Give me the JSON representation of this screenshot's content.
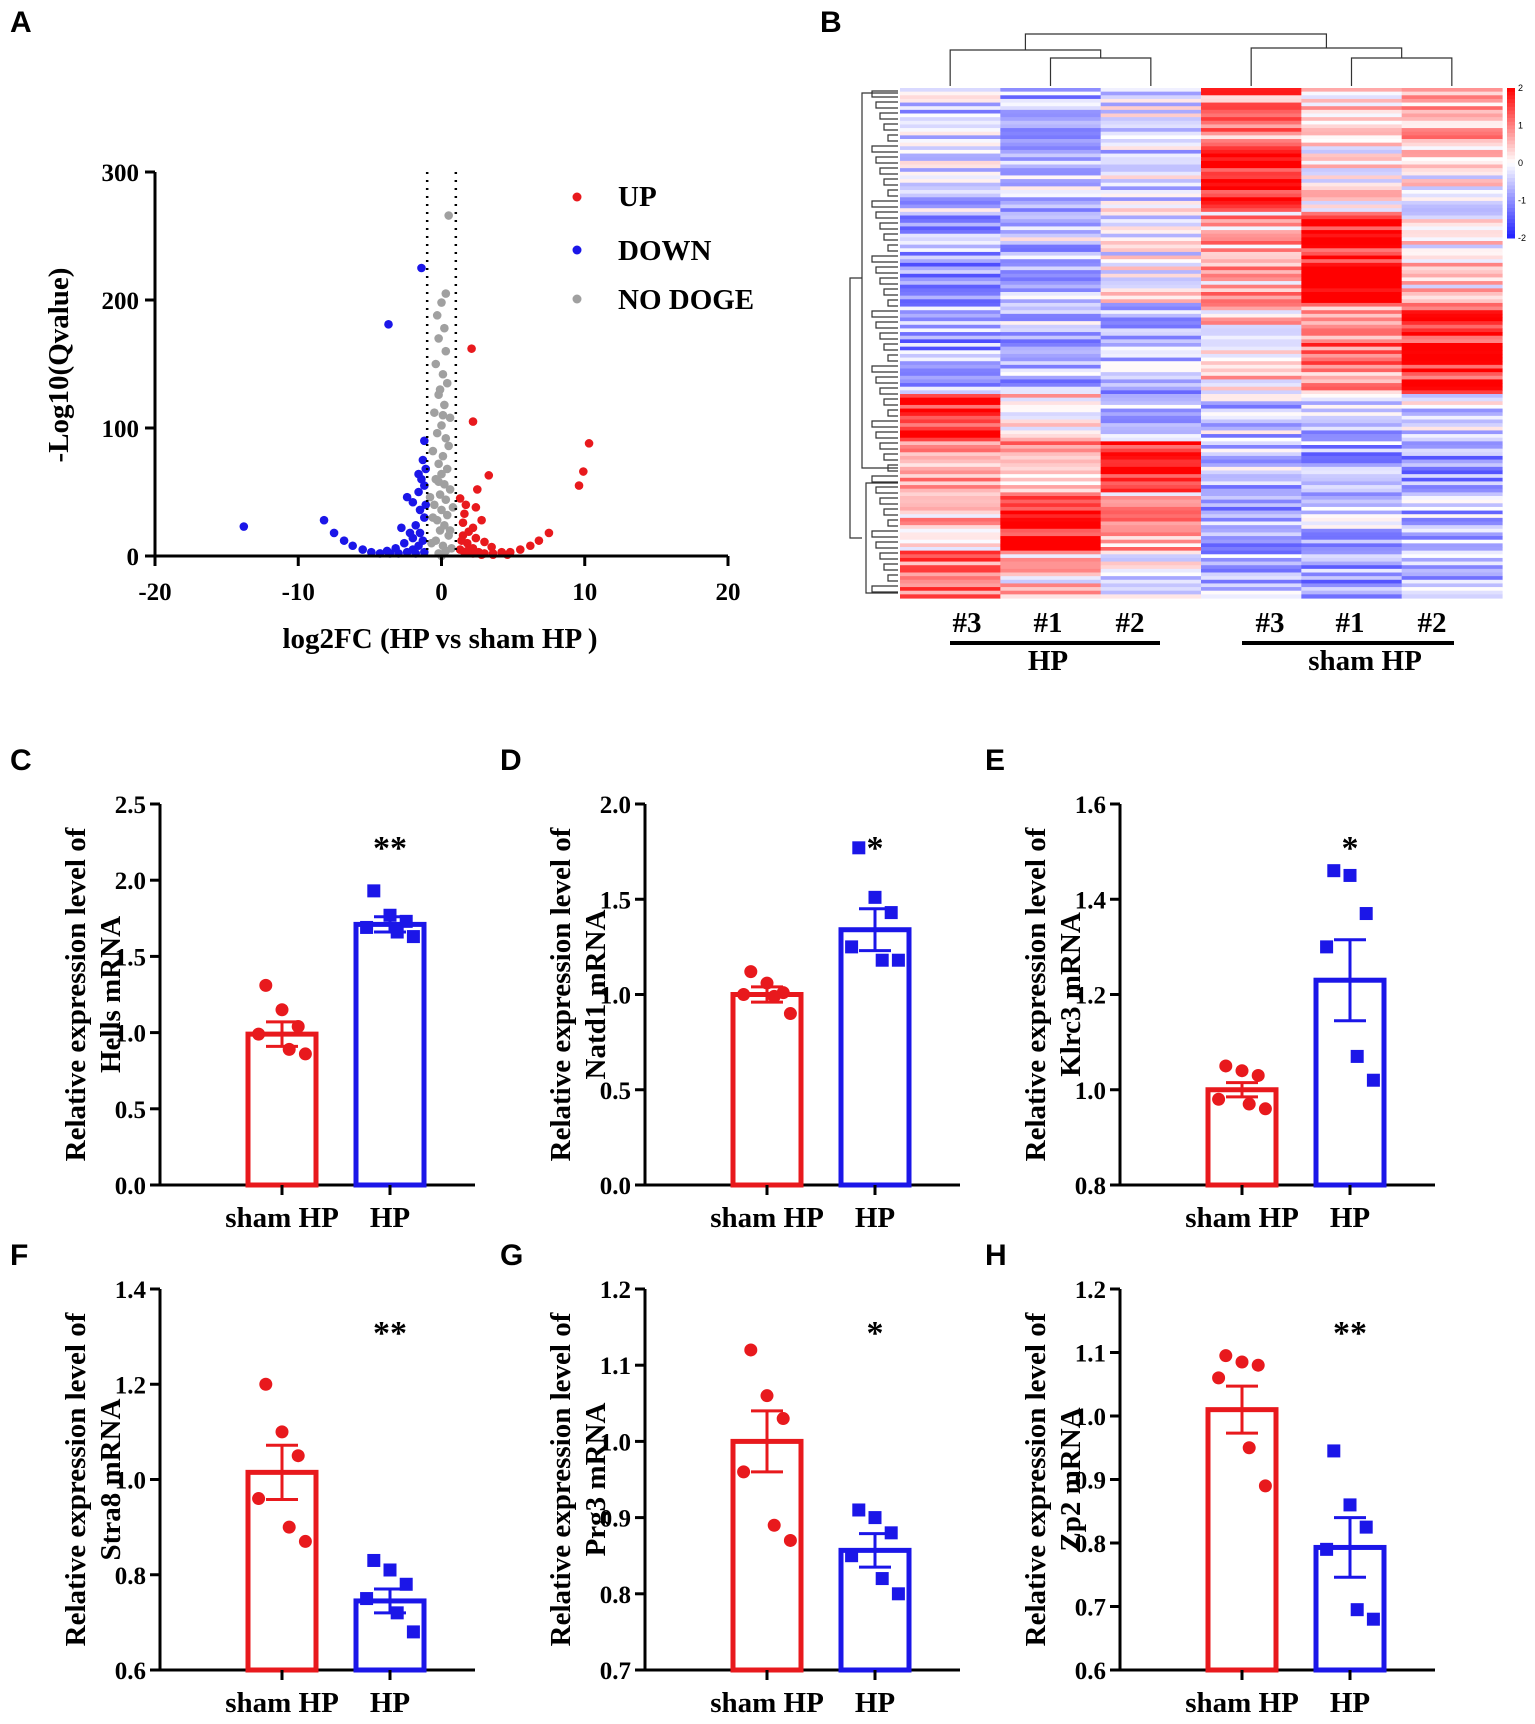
{
  "panel_labels": [
    "A",
    "B",
    "C",
    "D",
    "E",
    "F",
    "G",
    "H"
  ],
  "colors": {
    "up": "#e8191d",
    "down": "#1b16e8",
    "nodeg": "#a0a0a0",
    "sham": "#e8191d",
    "hp": "#1b16e8"
  },
  "chart_data": [
    {
      "type": "scatter",
      "panel": "A",
      "xlabel": "log2FC (HP vs sham HP )",
      "ylabel": "-Log10(Qvalue)",
      "xlim": [
        -20,
        20
      ],
      "ylim": [
        0,
        300
      ],
      "xticks": [
        "-20",
        "-10",
        "0",
        "10",
        "20"
      ],
      "yticks": [
        "0",
        "100",
        "200",
        "300"
      ],
      "thresholds": [
        -1,
        1
      ],
      "legend": [
        {
          "label": "UP",
          "color": "#e8191d"
        },
        {
          "label": "DOWN",
          "color": "#1b16e8"
        },
        {
          "label": "NO DOGE",
          "color": "#a0a0a0"
        }
      ],
      "series": [
        {
          "name": "UP",
          "points": [
            [
              2.1,
              162
            ],
            [
              2.2,
              105
            ],
            [
              10.3,
              88
            ],
            [
              9.9,
              66
            ],
            [
              9.6,
              55
            ],
            [
              3.3,
              63
            ],
            [
              2.5,
              52
            ],
            [
              7.5,
              18
            ],
            [
              6.8,
              12
            ],
            [
              6.2,
              8
            ],
            [
              5.5,
              5
            ],
            [
              4.8,
              3
            ],
            [
              4.2,
              3
            ],
            [
              3.6,
              2
            ],
            [
              3,
              2
            ],
            [
              2.6,
              3
            ],
            [
              2.2,
              6
            ],
            [
              1.8,
              10
            ],
            [
              1.5,
              16
            ],
            [
              2.2,
              22
            ],
            [
              2.8,
              28
            ],
            [
              1.6,
              33
            ],
            [
              1.7,
              40
            ],
            [
              1.3,
              45
            ],
            [
              2.4,
              38
            ],
            [
              1.5,
              26
            ],
            [
              1.9,
              19
            ],
            [
              2.4,
              14
            ],
            [
              3,
              11
            ],
            [
              3.5,
              7
            ],
            [
              1.3,
              5
            ],
            [
              1.6,
              3
            ],
            [
              2.2,
              2
            ],
            [
              2.8,
              1
            ],
            [
              3.6,
              1
            ],
            [
              4.6,
              1
            ],
            [
              1.4,
              12
            ],
            [
              1.8,
              4
            ]
          ]
        },
        {
          "name": "DOWN",
          "points": [
            [
              -1.4,
              225
            ],
            [
              -3.7,
              181
            ],
            [
              -13.8,
              23
            ],
            [
              -8.2,
              28
            ],
            [
              -7.5,
              18
            ],
            [
              -6.8,
              12
            ],
            [
              -6.2,
              8
            ],
            [
              -5.5,
              5
            ],
            [
              -4.9,
              3
            ],
            [
              -4.3,
              2
            ],
            [
              -3.6,
              2
            ],
            [
              -3,
              2
            ],
            [
              -2.4,
              3
            ],
            [
              -2,
              5
            ],
            [
              -1.6,
              8
            ],
            [
              -1.3,
              12
            ],
            [
              -1.5,
              18
            ],
            [
              -1.8,
              24
            ],
            [
              -1.2,
              30
            ],
            [
              -1.5,
              36
            ],
            [
              -2,
              42
            ],
            [
              -2.4,
              46
            ],
            [
              -1.6,
              50
            ],
            [
              -1.2,
              55
            ],
            [
              -1.4,
              60
            ],
            [
              -1.1,
              68
            ],
            [
              -1.3,
              75
            ],
            [
              -1.2,
              90
            ],
            [
              -2,
              14
            ],
            [
              -2.6,
              10
            ],
            [
              -3.2,
              6
            ],
            [
              -3.8,
              4
            ],
            [
              -1.2,
              3
            ],
            [
              -1.8,
              2
            ],
            [
              -2.2,
              18
            ],
            [
              -2.8,
              22
            ],
            [
              -1.1,
              40
            ],
            [
              -1.6,
              64
            ]
          ]
        },
        {
          "name": "NO DOGE",
          "points": [
            [
              0.5,
              266
            ],
            [
              0,
              198
            ],
            [
              -0.3,
              188
            ],
            [
              0.2,
              178
            ],
            [
              -0.2,
              170
            ],
            [
              0.3,
              160
            ],
            [
              -0.4,
              150
            ],
            [
              0.1,
              142
            ],
            [
              0.4,
              135
            ],
            [
              -0.2,
              126
            ],
            [
              0.2,
              118
            ],
            [
              -0.5,
              112
            ],
            [
              0.6,
              108
            ],
            [
              0,
              102
            ],
            [
              -0.3,
              96
            ],
            [
              0.3,
              92
            ],
            [
              0.5,
              86
            ],
            [
              -0.6,
              82
            ],
            [
              0.1,
              78
            ],
            [
              -0.2,
              72
            ],
            [
              0.4,
              68
            ],
            [
              0,
              64
            ],
            [
              -0.4,
              60
            ],
            [
              0.2,
              56
            ],
            [
              0.6,
              52
            ],
            [
              -0.1,
              48
            ],
            [
              0.3,
              44
            ],
            [
              -0.5,
              40
            ],
            [
              0,
              36
            ],
            [
              0.4,
              32
            ],
            [
              -0.3,
              28
            ],
            [
              0.2,
              24
            ],
            [
              -0.1,
              20
            ],
            [
              0.5,
              16
            ],
            [
              -0.4,
              12
            ],
            [
              0.1,
              8
            ],
            [
              0.3,
              4
            ],
            [
              -0.2,
              2
            ],
            [
              0,
              0
            ],
            [
              0.7,
              6
            ],
            [
              -0.7,
              10
            ],
            [
              0.6,
              20
            ],
            [
              -0.6,
              30
            ],
            [
              0.8,
              38
            ],
            [
              -0.8,
              46
            ],
            [
              0.1,
              110
            ],
            [
              -0.1,
              130
            ],
            [
              0.3,
              205
            ],
            [
              -0.2,
              58
            ]
          ]
        }
      ]
    },
    {
      "type": "heatmap",
      "panel": "B",
      "sample_labels": [
        "#3",
        "#1",
        "#2",
        "#3",
        "#1",
        "#2"
      ],
      "groups": [
        "HP",
        "sham HP"
      ],
      "colorbar_ticks": [
        "2",
        "1",
        "0",
        "-1",
        "-2"
      ],
      "color_high": "#ff0000",
      "color_mid": "#ffffff",
      "color_low": "#2020ff"
    },
    {
      "type": "bar",
      "panel": "C",
      "ylabel_line1": "Relative expression level of",
      "ylabel_line2": "Hells mRNA",
      "categories": [
        "sham HP",
        "HP"
      ],
      "values": [
        0.99,
        1.71
      ],
      "sem": [
        0.08,
        0.05
      ],
      "ylim": [
        0,
        2.5
      ],
      "yticks": [
        "0.0",
        "0.5",
        "1.0",
        "1.5",
        "2.0",
        "2.5"
      ],
      "significance": "**",
      "points": [
        [
          1.31,
          1.15,
          1.04,
          0.99,
          0.89,
          0.86
        ],
        [
          1.93,
          1.77,
          1.73,
          1.69,
          1.66,
          1.63
        ]
      ]
    },
    {
      "type": "bar",
      "panel": "D",
      "ylabel_line1": "Relative expression level of",
      "ylabel_line2": "Natd1 mRNA",
      "categories": [
        "sham HP",
        "HP"
      ],
      "values": [
        1.0,
        1.34
      ],
      "sem": [
        0.04,
        0.11
      ],
      "ylim": [
        0,
        2.0
      ],
      "yticks": [
        "0.0",
        "0.5",
        "1.0",
        "1.5",
        "2.0"
      ],
      "significance": "*",
      "points": [
        [
          1.12,
          1.06,
          1.01,
          1.0,
          0.99,
          0.9
        ],
        [
          1.77,
          1.51,
          1.43,
          1.25,
          1.18,
          1.18
        ]
      ]
    },
    {
      "type": "bar",
      "panel": "E",
      "ylabel_line1": "Relative expression level of",
      "ylabel_line2": "Klrc3  mRNA",
      "categories": [
        "sham HP",
        "HP"
      ],
      "values": [
        1.0,
        1.23
      ],
      "sem": [
        0.015,
        0.085
      ],
      "ylim": [
        0.8,
        1.6
      ],
      "yticks": [
        "0.8",
        "1.0",
        "1.2",
        "1.4",
        "1.6"
      ],
      "significance": "*",
      "points": [
        [
          1.05,
          1.04,
          1.03,
          0.98,
          0.97,
          0.96
        ],
        [
          1.46,
          1.45,
          1.37,
          1.3,
          1.07,
          1.02
        ]
      ]
    },
    {
      "type": "bar",
      "panel": "F",
      "ylabel_line1": "Relative expression level of",
      "ylabel_line2": "Stra8 mRNA",
      "categories": [
        "sham HP",
        "HP"
      ],
      "values": [
        1.015,
        0.745
      ],
      "sem": [
        0.057,
        0.025
      ],
      "ylim": [
        0.6,
        1.4
      ],
      "yticks": [
        "0.6",
        "0.8",
        "1.0",
        "1.2",
        "1.4"
      ],
      "significance": "**",
      "points": [
        [
          1.2,
          1.1,
          1.05,
          0.96,
          0.9,
          0.87
        ],
        [
          0.83,
          0.81,
          0.78,
          0.75,
          0.72,
          0.68
        ]
      ]
    },
    {
      "type": "bar",
      "panel": "G",
      "ylabel_line1": "Relative expression level of",
      "ylabel_line2": "Prg3 mRNA",
      "categories": [
        "sham HP",
        "HP"
      ],
      "values": [
        1.0,
        0.857
      ],
      "sem": [
        0.04,
        0.022
      ],
      "ylim": [
        0.7,
        1.2
      ],
      "yticks": [
        "0.7",
        "0.8",
        "0.9",
        "1.0",
        "1.1",
        "1.2"
      ],
      "significance": "*",
      "points": [
        [
          1.12,
          1.06,
          1.03,
          0.96,
          0.89,
          0.87
        ],
        [
          0.91,
          0.9,
          0.88,
          0.85,
          0.82,
          0.8
        ]
      ]
    },
    {
      "type": "bar",
      "panel": "H",
      "ylabel_line1": "Relative expression level of",
      "ylabel_line2": "Zp2 mRNA",
      "categories": [
        "sham HP",
        "HP"
      ],
      "values": [
        1.01,
        0.793
      ],
      "sem": [
        0.037,
        0.047
      ],
      "ylim": [
        0.6,
        1.2
      ],
      "yticks": [
        "0.6",
        "0.7",
        "0.8",
        "0.9",
        "1.0",
        "1.1",
        "1.2"
      ],
      "significance": "**",
      "points": [
        [
          1.095,
          1.085,
          1.08,
          1.06,
          0.95,
          0.89
        ],
        [
          0.945,
          0.86,
          0.825,
          0.79,
          0.695,
          0.68
        ]
      ]
    }
  ]
}
